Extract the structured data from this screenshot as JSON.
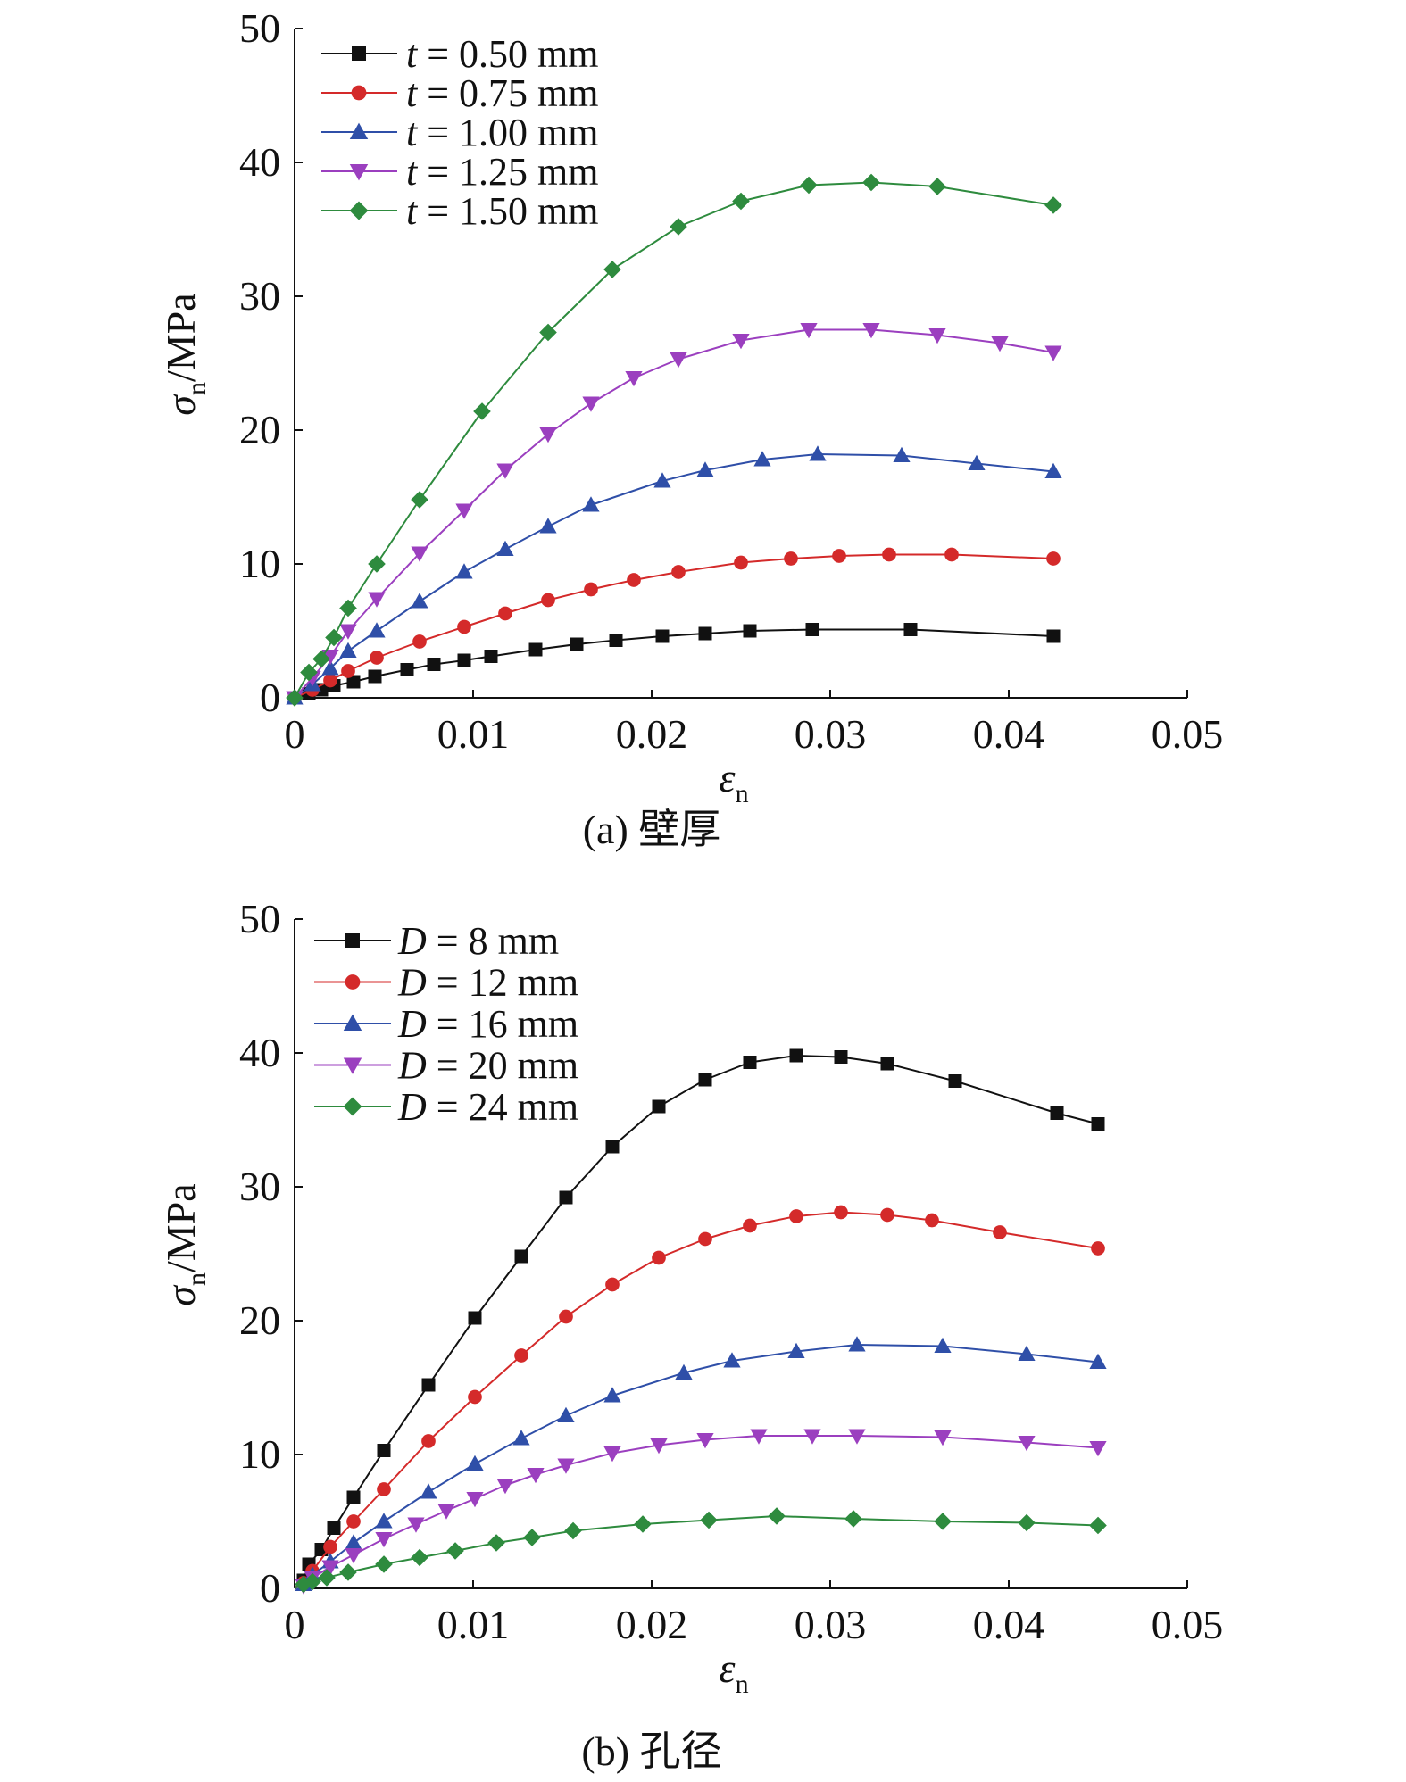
{
  "chart_data": [
    {
      "type": "line",
      "caption": "(a) 壁厚",
      "title": "",
      "xlabel": {
        "main": "ε",
        "sub": "n"
      },
      "ylabel": {
        "main": "σ",
        "sub": "n",
        "unit": "/MPa"
      },
      "xlim": [
        0,
        0.05
      ],
      "ylim": [
        0,
        50
      ],
      "xticks": [
        0,
        0.01,
        0.02,
        0.03,
        0.04,
        0.05
      ],
      "xtick_labels": [
        "0",
        "0.01",
        "0.02",
        "0.03",
        "0.04",
        "0.05"
      ],
      "yticks": [
        0,
        10,
        20,
        30,
        40,
        50
      ],
      "ytick_labels": [
        "0",
        "10",
        "20",
        "30",
        "40",
        "50"
      ],
      "grid": false,
      "legend_position": "top-left",
      "series": [
        {
          "name": "t = 0.50 mm",
          "legend": {
            "var": "t",
            "rest": " = 0.50 mm"
          },
          "color": "#111111",
          "marker": "square",
          "x": [
            0,
            0.0008,
            0.0015,
            0.0022,
            0.0033,
            0.0045,
            0.0063,
            0.0078,
            0.0095,
            0.011,
            0.0135,
            0.0158,
            0.018,
            0.0206,
            0.023,
            0.0255,
            0.029,
            0.0345,
            0.0425
          ],
          "y": [
            0,
            0.3,
            0.6,
            0.9,
            1.2,
            1.6,
            2.1,
            2.5,
            2.8,
            3.1,
            3.6,
            4.0,
            4.3,
            4.6,
            4.8,
            5.0,
            5.1,
            5.1,
            4.6
          ]
        },
        {
          "name": "t = 0.75 mm",
          "legend": {
            "var": "t",
            "rest": " = 0.75 mm"
          },
          "color": "#d42a2a",
          "marker": "circle",
          "x": [
            0,
            0.001,
            0.002,
            0.003,
            0.0046,
            0.007,
            0.0095,
            0.0118,
            0.0142,
            0.0166,
            0.019,
            0.0215,
            0.025,
            0.0278,
            0.0305,
            0.0333,
            0.0368,
            0.0425
          ],
          "y": [
            0,
            0.6,
            1.3,
            2.0,
            3.0,
            4.2,
            5.3,
            6.3,
            7.3,
            8.1,
            8.8,
            9.4,
            10.1,
            10.4,
            10.6,
            10.7,
            10.7,
            10.4
          ]
        },
        {
          "name": "t = 1.00 mm",
          "legend": {
            "var": "t",
            "rest": " = 1.00 mm"
          },
          "color": "#2f4fa8",
          "marker": "triangle-up",
          "x": [
            0,
            0.001,
            0.002,
            0.003,
            0.0046,
            0.007,
            0.0095,
            0.0118,
            0.0142,
            0.0166,
            0.0206,
            0.023,
            0.0262,
            0.0293,
            0.034,
            0.0382,
            0.0425
          ],
          "y": [
            0,
            1.0,
            2.2,
            3.5,
            5.0,
            7.2,
            9.4,
            11.1,
            12.8,
            14.4,
            16.2,
            17.0,
            17.8,
            18.2,
            18.1,
            17.5,
            16.9
          ]
        },
        {
          "name": "t = 1.25 mm",
          "legend": {
            "var": "t",
            "rest": " = 1.25 mm"
          },
          "color": "#9b3fbf",
          "marker": "triangle-down",
          "x": [
            0,
            0.001,
            0.002,
            0.003,
            0.0046,
            0.007,
            0.0095,
            0.0118,
            0.0142,
            0.0166,
            0.019,
            0.0215,
            0.025,
            0.0288,
            0.0323,
            0.036,
            0.0395,
            0.0425
          ],
          "y": [
            0,
            1.5,
            3.1,
            5.0,
            7.4,
            10.8,
            14.0,
            17.0,
            19.7,
            22.0,
            23.9,
            25.3,
            26.7,
            27.5,
            27.5,
            27.1,
            26.5,
            25.8
          ]
        },
        {
          "name": "t = 1.50 mm",
          "legend": {
            "var": "t",
            "rest": " = 1.50 mm"
          },
          "color": "#2e8b3e",
          "marker": "diamond",
          "x": [
            0,
            0.0008,
            0.0015,
            0.0022,
            0.003,
            0.0046,
            0.007,
            0.0105,
            0.0142,
            0.0178,
            0.0215,
            0.025,
            0.0288,
            0.0323,
            0.036,
            0.0425
          ],
          "y": [
            0,
            1.9,
            2.9,
            4.5,
            6.7,
            10.0,
            14.8,
            21.4,
            27.3,
            32.0,
            35.2,
            37.1,
            38.3,
            38.5,
            38.2,
            36.8
          ]
        }
      ]
    },
    {
      "type": "line",
      "caption": "(b) 孔径",
      "title": "",
      "xlabel": {
        "main": "ε",
        "sub": "n"
      },
      "ylabel": {
        "main": "σ",
        "sub": "n",
        "unit": "/MPa"
      },
      "xlim": [
        0,
        0.05
      ],
      "ylim": [
        0,
        50
      ],
      "xticks": [
        0,
        0.01,
        0.02,
        0.03,
        0.04,
        0.05
      ],
      "xtick_labels": [
        "0",
        "0.01",
        "0.02",
        "0.03",
        "0.04",
        "0.05"
      ],
      "yticks": [
        0,
        10,
        20,
        30,
        40,
        50
      ],
      "ytick_labels": [
        "0",
        "10",
        "20",
        "30",
        "40",
        "50"
      ],
      "grid": false,
      "legend_position": "top-left",
      "series": [
        {
          "name": "D = 8 mm",
          "legend": {
            "var": "D",
            "rest": " = 8 mm"
          },
          "color": "#111111",
          "marker": "square",
          "x": [
            0.0005,
            0.0008,
            0.0015,
            0.0022,
            0.0033,
            0.005,
            0.0075,
            0.0101,
            0.0127,
            0.0152,
            0.0178,
            0.0204,
            0.023,
            0.0255,
            0.0281,
            0.0306,
            0.0332,
            0.037,
            0.0427,
            0.045
          ],
          "y": [
            0.6,
            1.8,
            2.9,
            4.5,
            6.8,
            10.3,
            15.2,
            20.2,
            24.8,
            29.2,
            33.0,
            36.0,
            38.0,
            39.3,
            39.8,
            39.7,
            39.2,
            37.9,
            35.5,
            34.7
          ]
        },
        {
          "name": "D = 12 mm",
          "legend": {
            "var": "D",
            "rest": " = 12 mm"
          },
          "color": "#d42a2a",
          "marker": "circle",
          "x": [
            0.0005,
            0.001,
            0.002,
            0.0033,
            0.005,
            0.0075,
            0.0101,
            0.0127,
            0.0152,
            0.0178,
            0.0204,
            0.023,
            0.0255,
            0.0281,
            0.0306,
            0.0332,
            0.0357,
            0.0395,
            0.045
          ],
          "y": [
            0.4,
            1.3,
            3.1,
            5.0,
            7.4,
            11.0,
            14.3,
            17.4,
            20.3,
            22.7,
            24.7,
            26.1,
            27.1,
            27.8,
            28.1,
            27.9,
            27.5,
            26.6,
            25.4
          ]
        },
        {
          "name": "D = 16 mm",
          "legend": {
            "var": "D",
            "rest": " = 16 mm"
          },
          "color": "#2f4fa8",
          "marker": "triangle-up",
          "x": [
            0.0005,
            0.001,
            0.002,
            0.0033,
            0.005,
            0.0075,
            0.0101,
            0.0127,
            0.0152,
            0.0178,
            0.0218,
            0.0245,
            0.0281,
            0.0315,
            0.0363,
            0.041,
            0.045
          ],
          "y": [
            0.3,
            1.0,
            2.0,
            3.4,
            5.0,
            7.2,
            9.3,
            11.2,
            12.9,
            14.4,
            16.1,
            17.0,
            17.7,
            18.2,
            18.1,
            17.5,
            16.9
          ]
        },
        {
          "name": "D = 20 mm",
          "legend": {
            "var": "D",
            "rest": " = 20 mm"
          },
          "color": "#9b3fbf",
          "marker": "triangle-down",
          "x": [
            0.0005,
            0.001,
            0.002,
            0.0033,
            0.005,
            0.0068,
            0.0085,
            0.0101,
            0.0118,
            0.0135,
            0.0152,
            0.0178,
            0.0204,
            0.023,
            0.026,
            0.029,
            0.0315,
            0.0363,
            0.041,
            0.045
          ],
          "y": [
            0.2,
            0.8,
            1.6,
            2.5,
            3.7,
            4.8,
            5.8,
            6.7,
            7.7,
            8.5,
            9.2,
            10.1,
            10.7,
            11.1,
            11.4,
            11.4,
            11.4,
            11.3,
            10.9,
            10.5
          ]
        },
        {
          "name": "D = 24 mm",
          "legend": {
            "var": "D",
            "rest": " = 24 mm"
          },
          "color": "#2e8b3e",
          "marker": "diamond",
          "x": [
            0.0005,
            0.001,
            0.0018,
            0.003,
            0.005,
            0.007,
            0.009,
            0.0113,
            0.0133,
            0.0156,
            0.0195,
            0.0232,
            0.027,
            0.0313,
            0.0363,
            0.041,
            0.045
          ],
          "y": [
            0.3,
            0.5,
            0.8,
            1.2,
            1.8,
            2.3,
            2.8,
            3.4,
            3.8,
            4.3,
            4.8,
            5.1,
            5.4,
            5.2,
            5.0,
            4.9,
            4.7
          ]
        }
      ]
    }
  ]
}
